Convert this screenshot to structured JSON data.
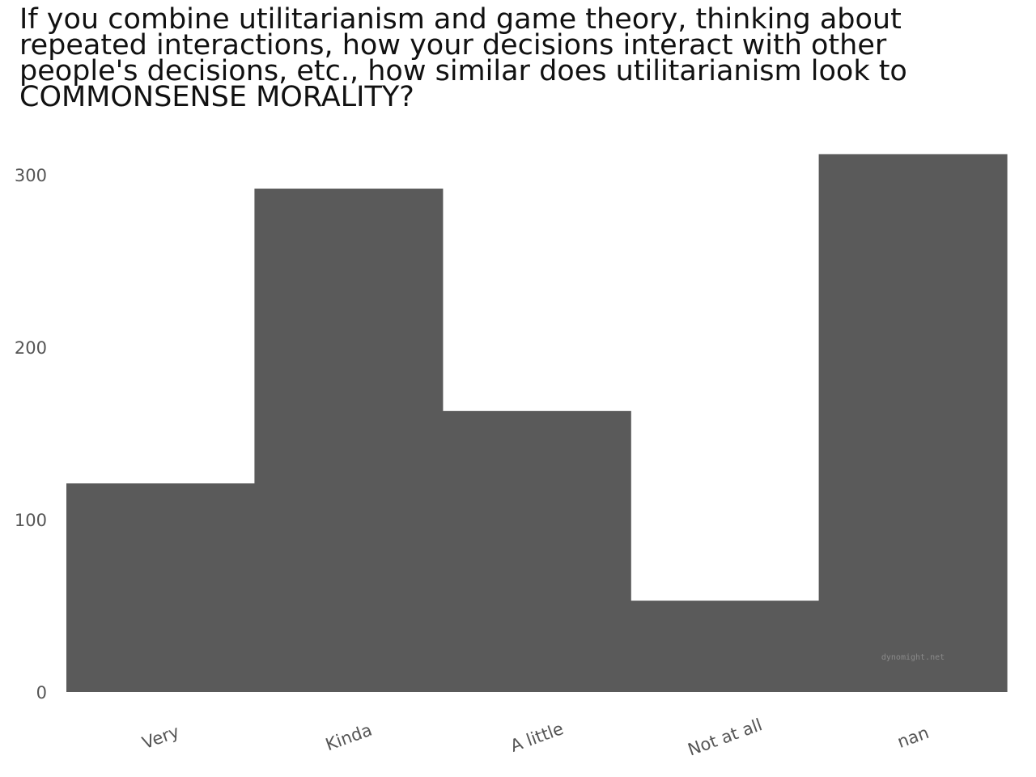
{
  "chart_data": {
    "type": "bar",
    "title_lines": [
      "If you combine utilitarianism and game theory, thinking about",
      "repeated interactions, how your decisions interact with other",
      "people's decisions, etc., how similar does utilitarianism look to",
      "COMMONSENSE MORALITY?"
    ],
    "categories": [
      "Very",
      "Kinda",
      "A little",
      "Not at all",
      "nan"
    ],
    "values": [
      121,
      292,
      163,
      53,
      312
    ],
    "yticks": [
      0,
      100,
      200,
      300
    ],
    "ylim": [
      0,
      320
    ],
    "xlabel": "",
    "ylabel": "",
    "grid": false,
    "bar_color": "#5a5a5a",
    "watermark": "dynomight.net"
  }
}
